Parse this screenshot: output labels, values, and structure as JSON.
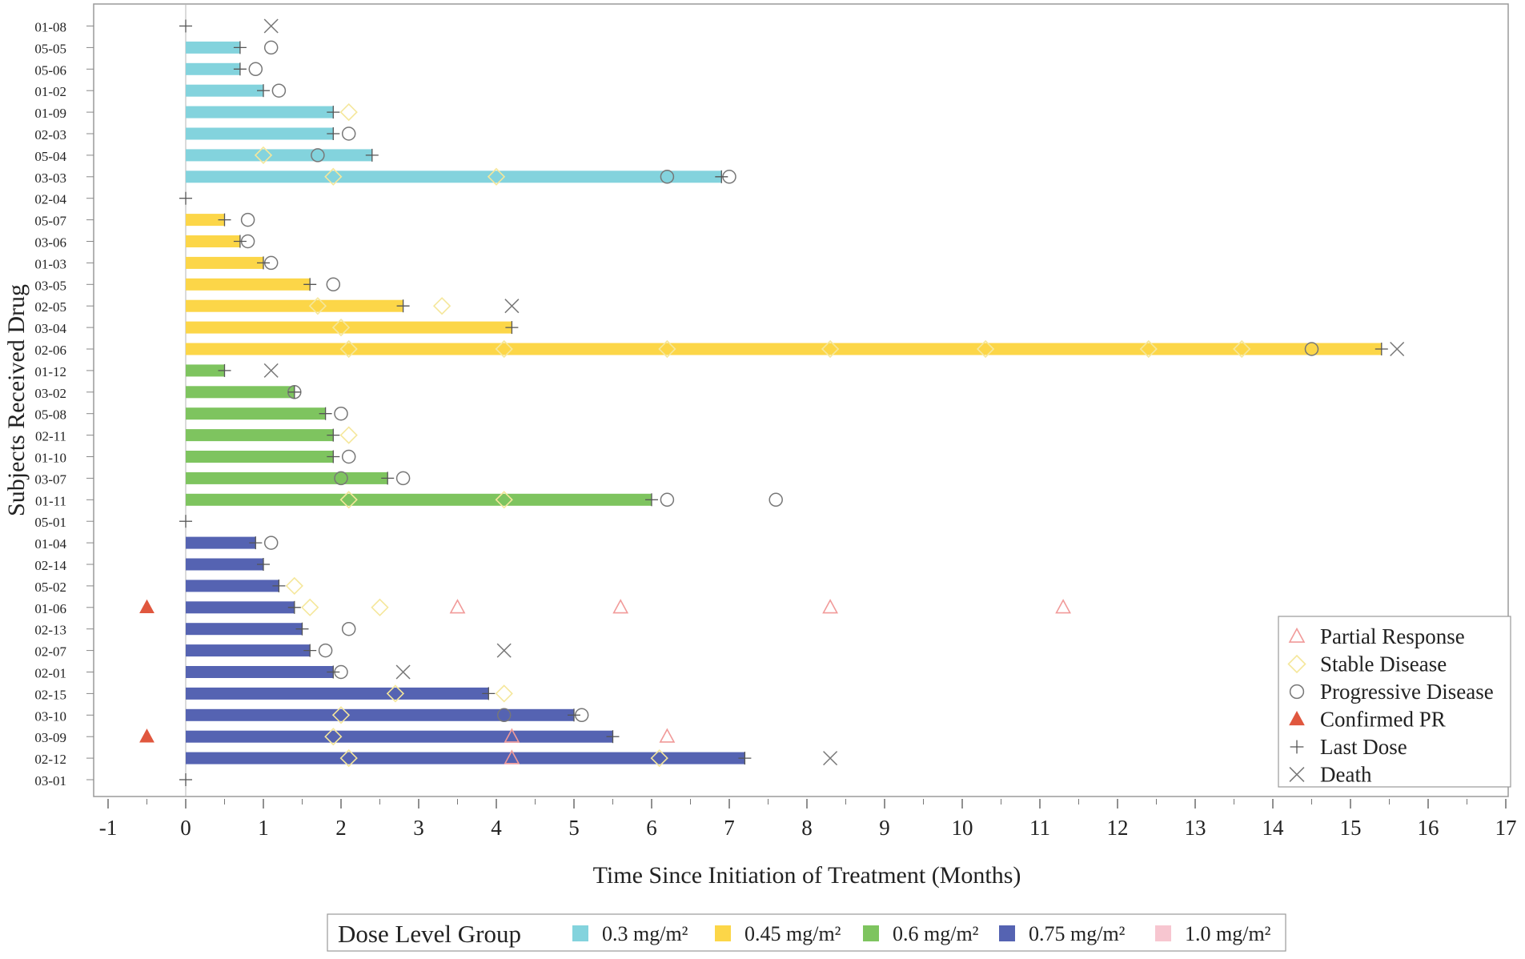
{
  "chart_data": {
    "type": "swimmer",
    "xlabel": "Time Since Initiation of Treatment (Months)",
    "ylabel": "Subjects Received Drug",
    "xlim": [
      -1,
      17
    ],
    "xticks": [
      "-1",
      "0",
      "1",
      "2",
      "3",
      "4",
      "5",
      "6",
      "7",
      "8",
      "9",
      "10",
      "11",
      "12",
      "13",
      "14",
      "15",
      "16",
      "17"
    ],
    "colors": {
      "0.3": "#83d3dd",
      "0.45": "#fcd648",
      "0.6": "#7ec45f",
      "0.75": "#5563b2",
      "1.0": "#f7c6d0",
      "pr": "#f19a99",
      "sd": "#f5e79b",
      "pd": "#777777",
      "confirmed": "#e0573e",
      "last": "#555555",
      "death": "#777777"
    },
    "subjects": [
      {
        "id": "01-08",
        "group": "0.3",
        "duration": 0,
        "last_dose": 0,
        "pr": [],
        "sd": [],
        "pd": [],
        "death": 1.1,
        "confirmed": null
      },
      {
        "id": "05-05",
        "group": "0.3",
        "duration": 0.7,
        "last_dose": 0.7,
        "pr": [],
        "sd": [],
        "pd": [
          1.1
        ],
        "death": null,
        "confirmed": null
      },
      {
        "id": "05-06",
        "group": "0.3",
        "duration": 0.7,
        "last_dose": 0.7,
        "pr": [],
        "sd": [],
        "pd": [
          0.9
        ],
        "death": null,
        "confirmed": null
      },
      {
        "id": "01-02",
        "group": "0.3",
        "duration": 1.0,
        "last_dose": 1.0,
        "pr": [],
        "sd": [],
        "pd": [
          1.2
        ],
        "death": null,
        "confirmed": null
      },
      {
        "id": "01-09",
        "group": "0.3",
        "duration": 1.9,
        "last_dose": 1.9,
        "pr": [],
        "sd": [
          2.1
        ],
        "pd": [],
        "death": null,
        "confirmed": null
      },
      {
        "id": "02-03",
        "group": "0.3",
        "duration": 1.9,
        "last_dose": 1.9,
        "pr": [],
        "sd": [],
        "pd": [
          2.1
        ],
        "death": null,
        "confirmed": null
      },
      {
        "id": "05-04",
        "group": "0.3",
        "duration": 2.4,
        "last_dose": 2.4,
        "pr": [],
        "sd": [
          1.0
        ],
        "pd": [
          1.7
        ],
        "death": null,
        "confirmed": null
      },
      {
        "id": "03-03",
        "group": "0.3",
        "duration": 6.9,
        "last_dose": 6.9,
        "pr": [],
        "sd": [
          1.9,
          4.0
        ],
        "pd": [
          6.2,
          7.0
        ],
        "death": null,
        "confirmed": null
      },
      {
        "id": "02-04",
        "group": "0.45",
        "duration": 0,
        "last_dose": 0,
        "pr": [],
        "sd": [],
        "pd": [],
        "death": null,
        "confirmed": null
      },
      {
        "id": "05-07",
        "group": "0.45",
        "duration": 0.5,
        "last_dose": 0.5,
        "pr": [],
        "sd": [],
        "pd": [
          0.8
        ],
        "death": null,
        "confirmed": null
      },
      {
        "id": "03-06",
        "group": "0.45",
        "duration": 0.7,
        "last_dose": 0.7,
        "pr": [],
        "sd": [],
        "pd": [
          0.8
        ],
        "death": null,
        "confirmed": null
      },
      {
        "id": "01-03",
        "group": "0.45",
        "duration": 1.0,
        "last_dose": 1.0,
        "pr": [],
        "sd": [],
        "pd": [
          1.1
        ],
        "death": null,
        "confirmed": null
      },
      {
        "id": "03-05",
        "group": "0.45",
        "duration": 1.6,
        "last_dose": 1.6,
        "pr": [],
        "sd": [],
        "pd": [
          1.9
        ],
        "death": null,
        "confirmed": null
      },
      {
        "id": "02-05",
        "group": "0.45",
        "duration": 2.8,
        "last_dose": 2.8,
        "pr": [],
        "sd": [
          1.7,
          3.3
        ],
        "pd": [],
        "death": 4.2,
        "confirmed": null
      },
      {
        "id": "03-04",
        "group": "0.45",
        "duration": 4.2,
        "last_dose": 4.2,
        "pr": [],
        "sd": [
          2.0
        ],
        "pd": [],
        "death": null,
        "confirmed": null
      },
      {
        "id": "02-06",
        "group": "0.45",
        "duration": 15.4,
        "last_dose": 15.4,
        "pr": [],
        "sd": [
          2.1,
          4.1,
          6.2,
          8.3,
          10.3,
          12.4,
          13.6
        ],
        "pd": [
          14.5
        ],
        "death": 15.6,
        "confirmed": null
      },
      {
        "id": "01-12",
        "group": "0.6",
        "duration": 0.5,
        "last_dose": 0.5,
        "pr": [],
        "sd": [],
        "pd": [],
        "death": 1.1,
        "confirmed": null
      },
      {
        "id": "03-02",
        "group": "0.6",
        "duration": 1.4,
        "last_dose": 1.4,
        "pr": [],
        "sd": [],
        "pd": [
          1.4
        ],
        "death": null,
        "confirmed": null
      },
      {
        "id": "05-08",
        "group": "0.6",
        "duration": 1.8,
        "last_dose": 1.8,
        "pr": [],
        "sd": [],
        "pd": [
          2.0
        ],
        "death": null,
        "confirmed": null
      },
      {
        "id": "02-11",
        "group": "0.6",
        "duration": 1.9,
        "last_dose": 1.9,
        "pr": [],
        "sd": [
          2.1
        ],
        "pd": [],
        "death": null,
        "confirmed": null
      },
      {
        "id": "01-10",
        "group": "0.6",
        "duration": 1.9,
        "last_dose": 1.9,
        "pr": [],
        "sd": [],
        "pd": [
          2.1
        ],
        "death": null,
        "confirmed": null
      },
      {
        "id": "03-07",
        "group": "0.6",
        "duration": 2.6,
        "last_dose": 2.6,
        "pr": [],
        "sd": [],
        "pd": [
          2.0,
          2.8
        ],
        "death": null,
        "confirmed": null
      },
      {
        "id": "01-11",
        "group": "0.6",
        "duration": 6.0,
        "last_dose": 6.0,
        "pr": [],
        "sd": [
          2.1,
          4.1
        ],
        "pd": [
          6.2,
          7.6
        ],
        "death": null,
        "confirmed": null
      },
      {
        "id": "05-01",
        "group": "0.75",
        "duration": 0,
        "last_dose": 0,
        "pr": [],
        "sd": [],
        "pd": [],
        "death": null,
        "confirmed": null
      },
      {
        "id": "01-04",
        "group": "0.75",
        "duration": 0.9,
        "last_dose": 0.9,
        "pr": [],
        "sd": [],
        "pd": [
          1.1
        ],
        "death": null,
        "confirmed": null
      },
      {
        "id": "02-14",
        "group": "0.75",
        "duration": 1.0,
        "last_dose": 1.0,
        "pr": [],
        "sd": [],
        "pd": [],
        "death": null,
        "confirmed": null
      },
      {
        "id": "05-02",
        "group": "0.75",
        "duration": 1.2,
        "last_dose": 1.2,
        "pr": [],
        "sd": [
          1.4
        ],
        "pd": [],
        "death": null,
        "confirmed": null
      },
      {
        "id": "01-06",
        "group": "0.75",
        "duration": 1.4,
        "last_dose": 1.4,
        "pr": [
          3.5,
          5.6,
          8.3,
          11.3
        ],
        "sd": [
          1.6,
          2.5
        ],
        "pd": [],
        "death": null,
        "confirmed": -0.5
      },
      {
        "id": "02-13",
        "group": "0.75",
        "duration": 1.5,
        "last_dose": 1.5,
        "pr": [],
        "sd": [],
        "pd": [
          2.1
        ],
        "death": null,
        "confirmed": null
      },
      {
        "id": "02-07",
        "group": "0.75",
        "duration": 1.6,
        "last_dose": 1.6,
        "pr": [],
        "sd": [],
        "pd": [
          1.8
        ],
        "death": 4.1,
        "confirmed": null
      },
      {
        "id": "02-01",
        "group": "0.75",
        "duration": 1.9,
        "last_dose": 1.9,
        "pr": [],
        "sd": [],
        "pd": [
          2.0
        ],
        "death": 2.8,
        "confirmed": null
      },
      {
        "id": "02-15",
        "group": "0.75",
        "duration": 3.9,
        "last_dose": 3.9,
        "pr": [],
        "sd": [
          2.7,
          4.1
        ],
        "pd": [],
        "death": null,
        "confirmed": null
      },
      {
        "id": "03-10",
        "group": "0.75",
        "duration": 5.0,
        "last_dose": 5.0,
        "pr": [],
        "sd": [
          2.0
        ],
        "pd": [
          4.1,
          5.1
        ],
        "death": null,
        "confirmed": null
      },
      {
        "id": "03-09",
        "group": "0.75",
        "duration": 5.5,
        "last_dose": 5.5,
        "pr": [
          4.2,
          6.2
        ],
        "sd": [
          1.9
        ],
        "pd": [],
        "death": null,
        "confirmed": -0.5
      },
      {
        "id": "02-12",
        "group": "0.75",
        "duration": 7.2,
        "last_dose": 7.2,
        "pr": [
          4.2
        ],
        "sd": [
          2.1,
          6.1
        ],
        "pd": [],
        "death": 8.3,
        "confirmed": null
      },
      {
        "id": "03-01",
        "group": "0.75",
        "duration": 0,
        "last_dose": 0,
        "pr": [],
        "sd": [],
        "pd": [],
        "death": null,
        "confirmed": null
      }
    ],
    "legend_markers": [
      {
        "key": "pr",
        "label": "Partial Response"
      },
      {
        "key": "sd",
        "label": "Stable Disease"
      },
      {
        "key": "pd",
        "label": "Progressive Disease"
      },
      {
        "key": "confirmed",
        "label": "Confirmed PR"
      },
      {
        "key": "last",
        "label": "Last Dose"
      },
      {
        "key": "death",
        "label": "Death"
      }
    ],
    "dose_legend": {
      "title": "Dose Level Group",
      "items": [
        {
          "key": "0.3",
          "label": "0.3 mg/m²"
        },
        {
          "key": "0.45",
          "label": "0.45 mg/m²"
        },
        {
          "key": "0.6",
          "label": "0.6 mg/m²"
        },
        {
          "key": "0.75",
          "label": "0.75 mg/m²"
        },
        {
          "key": "1.0",
          "label": "1.0 mg/m²"
        }
      ]
    }
  }
}
